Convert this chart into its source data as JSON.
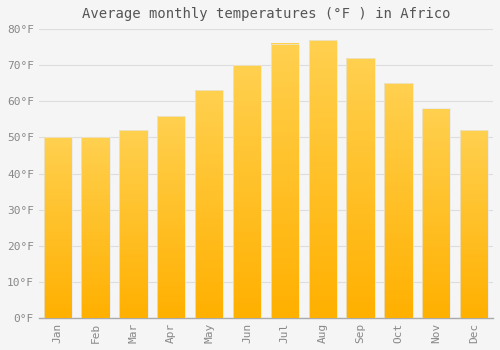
{
  "title": "Average monthly temperatures (°F ) in Africo",
  "months": [
    "Jan",
    "Feb",
    "Mar",
    "Apr",
    "May",
    "Jun",
    "Jul",
    "Aug",
    "Sep",
    "Oct",
    "Nov",
    "Dec"
  ],
  "values": [
    50,
    50,
    52,
    56,
    63,
    70,
    76,
    77,
    72,
    65,
    58,
    52
  ],
  "bar_color_top": "#FFC020",
  "bar_color_bottom": "#F5A800",
  "bar_edge_color": "#E8E8E8",
  "background_color": "#F5F5F5",
  "grid_color": "#DDDDDD",
  "text_color": "#888888",
  "title_color": "#555555",
  "ylim": [
    0,
    80
  ],
  "yticks": [
    0,
    10,
    20,
    30,
    40,
    50,
    60,
    70,
    80
  ],
  "title_fontsize": 10,
  "tick_fontsize": 8,
  "font_family": "monospace"
}
